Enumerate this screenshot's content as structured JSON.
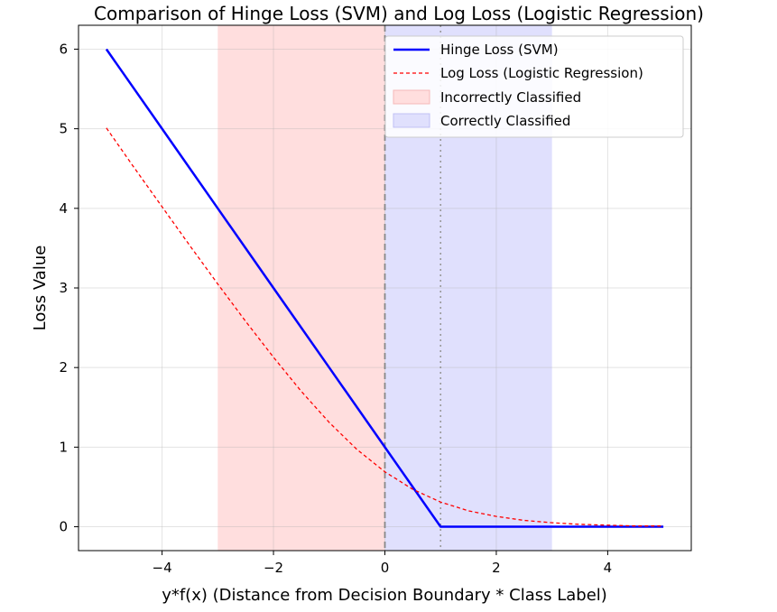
{
  "chart_data": {
    "type": "line",
    "title": "Comparison of Hinge Loss (SVM) and Log Loss (Logistic Regression)",
    "xlabel": "y*f(x) (Distance from Decision Boundary * Class Label)",
    "ylabel": "Loss Value",
    "xlim": [
      -5.5,
      5.5
    ],
    "ylim": [
      -0.3,
      6.3
    ],
    "xticks": [
      -4,
      -2,
      0,
      2,
      4
    ],
    "xtick_labels": [
      "−4",
      "−2",
      "0",
      "2",
      "4"
    ],
    "yticks": [
      0,
      1,
      2,
      3,
      4,
      5,
      6
    ],
    "ytick_labels": [
      "0",
      "1",
      "2",
      "3",
      "4",
      "5",
      "6"
    ],
    "grid": true,
    "legend_position": "top-right",
    "regions": [
      {
        "name": "Incorrectly Classified",
        "x_range": [
          -3,
          0
        ],
        "color": "#ffdede"
      },
      {
        "name": "Correctly Classified",
        "x_range": [
          0,
          3
        ],
        "color": "#e0e0fd"
      }
    ],
    "vlines": [
      {
        "x": 0,
        "style": "dashed",
        "color": "#888888"
      },
      {
        "x": 1,
        "style": "dotted",
        "color": "#999999"
      }
    ],
    "series": [
      {
        "name": "Hinge Loss (SVM)",
        "color": "#0000ff",
        "style": "solid",
        "x": [
          -5,
          -4,
          -3,
          -2,
          -1,
          0,
          1,
          2,
          3,
          4,
          5
        ],
        "y": [
          6,
          5,
          4,
          3,
          2,
          1,
          0,
          0,
          0,
          0,
          0
        ]
      },
      {
        "name": "Log Loss (Logistic Regression)",
        "color": "#ff0000",
        "style": "dashed",
        "x": [
          -5,
          -4.5,
          -4,
          -3.5,
          -3,
          -2.5,
          -2,
          -1.5,
          -1,
          -0.5,
          0,
          0.5,
          1,
          1.5,
          2,
          2.5,
          3,
          3.5,
          4,
          4.5,
          5
        ],
        "y": [
          5.01,
          4.51,
          4.02,
          3.53,
          3.05,
          2.58,
          2.13,
          1.7,
          1.31,
          0.97,
          0.69,
          0.47,
          0.31,
          0.2,
          0.13,
          0.08,
          0.05,
          0.03,
          0.02,
          0.01,
          0.01
        ]
      }
    ]
  }
}
